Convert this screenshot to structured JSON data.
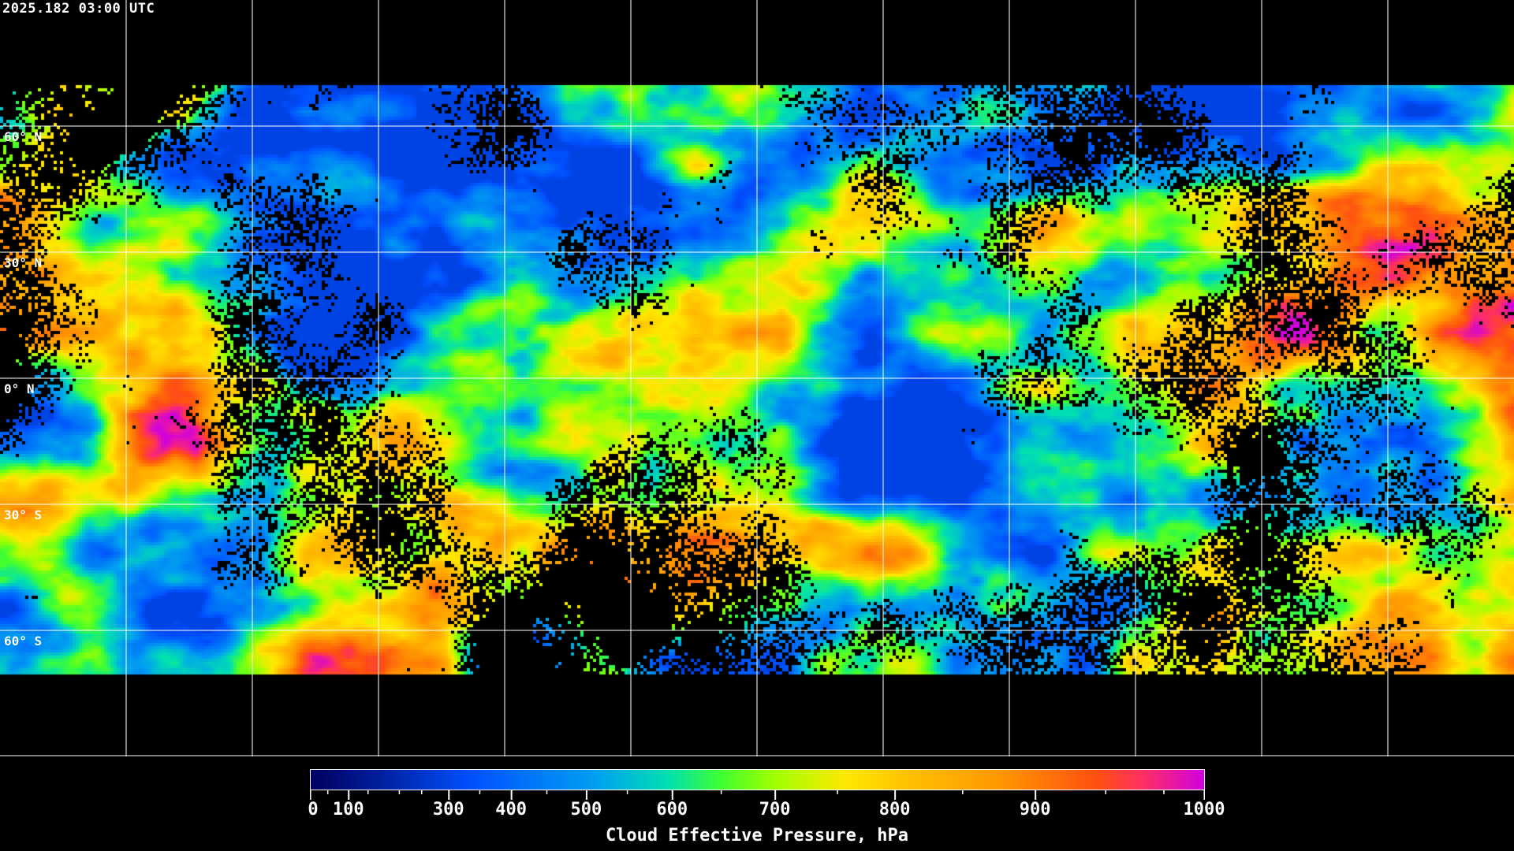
{
  "header": {
    "timestamp": "2025.182 03:00 UTC"
  },
  "map": {
    "projection": "equirectangular",
    "background": "#000000",
    "gridline_color": "#ffffff",
    "coastline_color": "#ffffff",
    "gridline_spacing_deg": 30,
    "lat_labels": [
      "60° N",
      "30° N",
      "0° N",
      "30° S",
      "60° S"
    ]
  },
  "colorbar": {
    "title": "Cloud Effective Pressure, hPa",
    "tick_labels": [
      "0",
      "100",
      "300",
      "400",
      "500",
      "600",
      "700",
      "800",
      "900",
      "1000"
    ],
    "range": [
      0,
      1000
    ],
    "colors": [
      "#000060",
      "#0050ff",
      "#00a0f0",
      "#00e0b0",
      "#40ff30",
      "#a0ff00",
      "#ffe800",
      "#ffc000",
      "#ff9800",
      "#ff5010",
      "#ff3060",
      "#d000e0"
    ]
  }
}
